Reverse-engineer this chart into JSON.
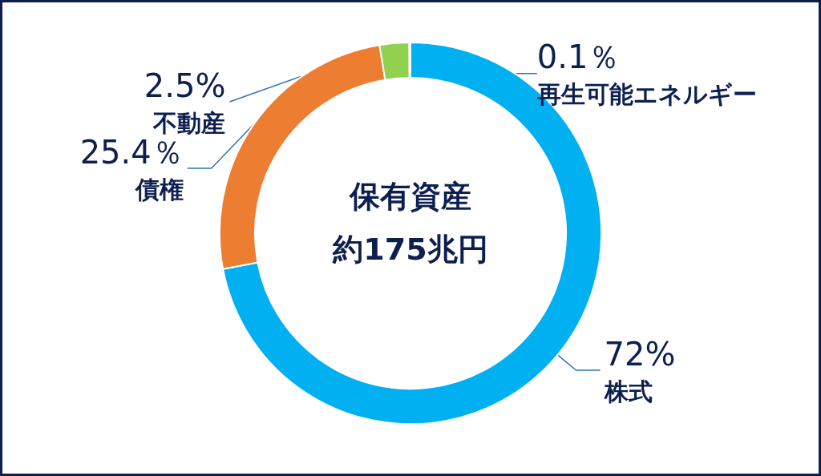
{
  "chart_data": {
    "type": "donut",
    "title": "保有資産",
    "subtitle": "約175兆円",
    "categories": [
      "株式",
      "債権",
      "不動産",
      "再生可能エネルギー"
    ],
    "values": [
      72,
      25.4,
      2.5,
      0.1
    ],
    "value_labels": [
      "72%",
      "25.4％",
      "2.5%",
      "0.1％"
    ],
    "colors": [
      "#00b0f0",
      "#ed7d31",
      "#92d050",
      "#a5a5a5"
    ],
    "legend": false
  }
}
